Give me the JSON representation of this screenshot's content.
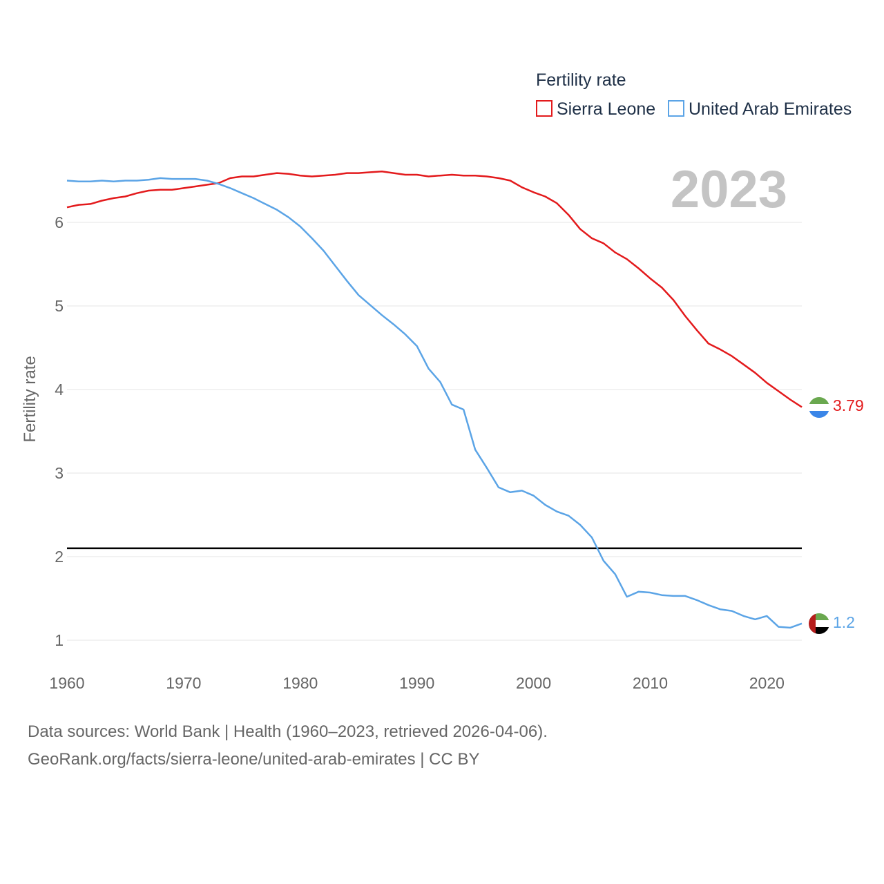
{
  "chart_data": {
    "type": "line",
    "legend_title": "Fertility rate",
    "ylabel": "Fertility rate",
    "xlim": [
      1960,
      2023
    ],
    "ylim": [
      0.7,
      6.8
    ],
    "x_ticks": [
      1960,
      1970,
      1980,
      1990,
      2000,
      2010,
      2020
    ],
    "y_ticks": [
      1,
      2,
      3,
      4,
      5,
      6
    ],
    "year_label": "2023",
    "reference_line": {
      "y": 2.1,
      "color": "#000000"
    },
    "x": [
      1960,
      1961,
      1962,
      1963,
      1964,
      1965,
      1966,
      1967,
      1968,
      1969,
      1970,
      1971,
      1972,
      1973,
      1974,
      1975,
      1976,
      1977,
      1978,
      1979,
      1980,
      1981,
      1982,
      1983,
      1984,
      1985,
      1986,
      1987,
      1988,
      1989,
      1990,
      1991,
      1992,
      1993,
      1994,
      1995,
      1996,
      1997,
      1998,
      1999,
      2000,
      2001,
      2002,
      2003,
      2004,
      2005,
      2006,
      2007,
      2008,
      2009,
      2010,
      2011,
      2012,
      2013,
      2014,
      2015,
      2016,
      2017,
      2018,
      2019,
      2020,
      2021,
      2022,
      2023
    ],
    "series": [
      {
        "name": "Sierra Leone",
        "color": "#e31a1c",
        "end_label": "3.79",
        "flag": "sierra-leone-flag",
        "values": [
          6.18,
          6.21,
          6.22,
          6.26,
          6.29,
          6.31,
          6.35,
          6.38,
          6.39,
          6.39,
          6.41,
          6.43,
          6.45,
          6.47,
          6.53,
          6.55,
          6.55,
          6.57,
          6.59,
          6.58,
          6.56,
          6.55,
          6.56,
          6.57,
          6.59,
          6.59,
          6.6,
          6.61,
          6.59,
          6.57,
          6.57,
          6.55,
          6.56,
          6.57,
          6.56,
          6.56,
          6.55,
          6.53,
          6.5,
          6.42,
          6.36,
          6.31,
          6.23,
          6.09,
          5.92,
          5.81,
          5.75,
          5.64,
          5.56,
          5.45,
          5.33,
          5.22,
          5.07,
          4.88,
          4.71,
          4.55,
          4.48,
          4.4,
          4.3,
          4.2,
          4.08,
          3.98,
          3.88,
          3.79
        ]
      },
      {
        "name": "United Arab Emirates",
        "color": "#5ba4e6",
        "end_label": "1.2",
        "flag": "uae-flag",
        "values": [
          6.5,
          6.49,
          6.49,
          6.5,
          6.49,
          6.5,
          6.5,
          6.51,
          6.53,
          6.52,
          6.52,
          6.52,
          6.5,
          6.46,
          6.41,
          6.35,
          6.29,
          6.22,
          6.15,
          6.06,
          5.95,
          5.81,
          5.66,
          5.48,
          5.3,
          5.13,
          5.01,
          4.89,
          4.78,
          4.66,
          4.52,
          4.25,
          4.09,
          3.82,
          3.76,
          3.28,
          3.06,
          2.83,
          2.77,
          2.79,
          2.73,
          2.62,
          2.54,
          2.49,
          2.38,
          2.23,
          1.95,
          1.79,
          1.52,
          1.58,
          1.57,
          1.54,
          1.53,
          1.53,
          1.48,
          1.42,
          1.37,
          1.35,
          1.29,
          1.25,
          1.29,
          1.16,
          1.15,
          1.2
        ]
      }
    ]
  },
  "footer": {
    "line1": "Data sources: World Bank | Health (1960–2023, retrieved 2026-04-06).",
    "line2": "GeoRank.org/facts/sierra-leone/united-arab-emirates | CC BY"
  }
}
